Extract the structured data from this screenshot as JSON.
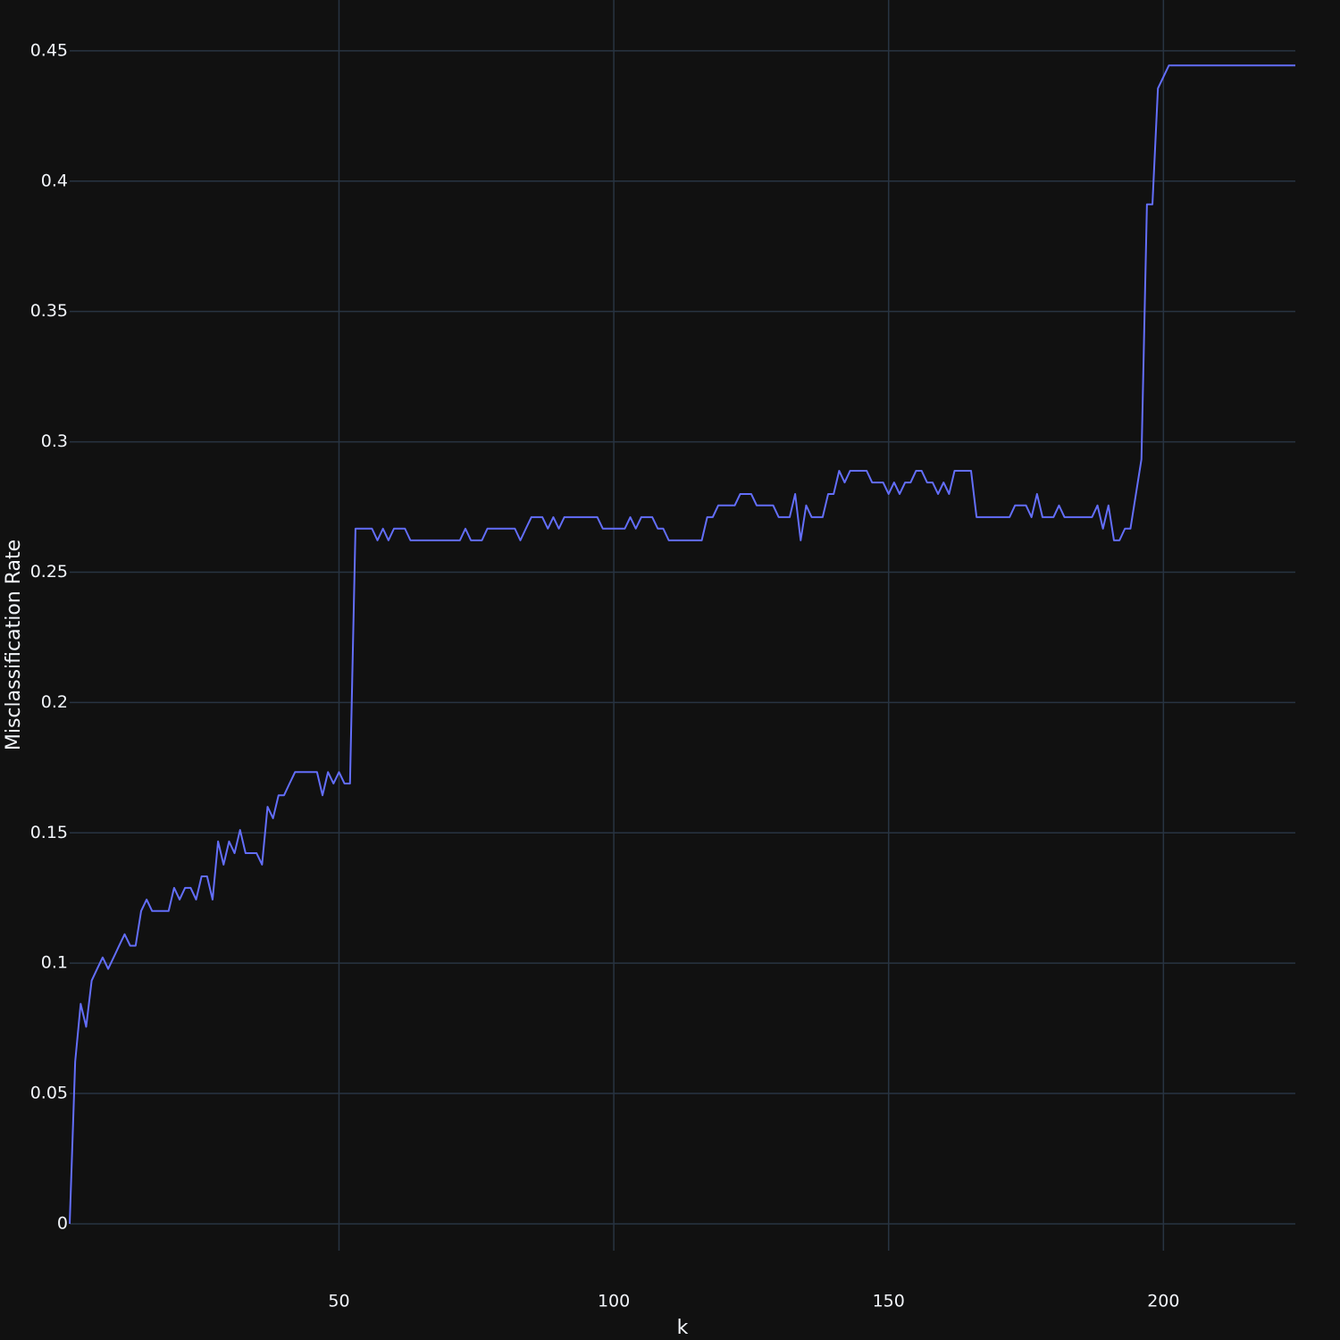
{
  "chart_data": {
    "type": "line",
    "x_label": "k",
    "y_label": "Misclassification Rate",
    "x": [
      1,
      2,
      3,
      4,
      5,
      6,
      7,
      8,
      9,
      10,
      11,
      12,
      13,
      14,
      15,
      16,
      17,
      18,
      19,
      20,
      21,
      22,
      23,
      24,
      25,
      26,
      27,
      28,
      29,
      30,
      31,
      32,
      33,
      34,
      35,
      36,
      37,
      38,
      39,
      40,
      41,
      42,
      43,
      44,
      45,
      46,
      47,
      48,
      49,
      50,
      51,
      52,
      53,
      54,
      55,
      56,
      57,
      58,
      59,
      60,
      61,
      62,
      63,
      64,
      65,
      66,
      67,
      68,
      69,
      70,
      71,
      72,
      73,
      74,
      75,
      76,
      77,
      78,
      79,
      80,
      81,
      82,
      83,
      84,
      85,
      86,
      87,
      88,
      89,
      90,
      91,
      92,
      93,
      94,
      95,
      96,
      97,
      98,
      99,
      100,
      101,
      102,
      103,
      104,
      105,
      106,
      107,
      108,
      109,
      110,
      111,
      112,
      113,
      114,
      115,
      116,
      117,
      118,
      119,
      120,
      121,
      122,
      123,
      124,
      125,
      126,
      127,
      128,
      129,
      130,
      131,
      132,
      133,
      134,
      135,
      136,
      137,
      138,
      139,
      140,
      141,
      142,
      143,
      144,
      145,
      146,
      147,
      148,
      149,
      150,
      151,
      152,
      153,
      154,
      155,
      156,
      157,
      158,
      159,
      160,
      161,
      162,
      163,
      164,
      165,
      166,
      167,
      168,
      169,
      170,
      171,
      172,
      173,
      174,
      175,
      176,
      177,
      178,
      179,
      180,
      181,
      182,
      183,
      184,
      185,
      186,
      187,
      188,
      189,
      190,
      191,
      192,
      193,
      194,
      195,
      196,
      197,
      198,
      199,
      200,
      201,
      202,
      203,
      204,
      205,
      206,
      207,
      208,
      209,
      210,
      211,
      212,
      213,
      214,
      215,
      216,
      217,
      218,
      219,
      220,
      221,
      222,
      223,
      224
    ],
    "series": [
      {
        "color": "#636efa",
        "values": [
          0,
          0.0622,
          0.0844,
          0.0756,
          0.0933,
          0.0978,
          0.1022,
          0.0978,
          0.1022,
          0.1067,
          0.1111,
          0.1067,
          0.1067,
          0.12,
          0.1244,
          0.12,
          0.12,
          0.12,
          0.12,
          0.1289,
          0.1244,
          0.1289,
          0.1289,
          0.1244,
          0.1333,
          0.1333,
          0.1244,
          0.1467,
          0.1378,
          0.1467,
          0.1422,
          0.1511,
          0.1422,
          0.1422,
          0.1422,
          0.1378,
          0.16,
          0.1556,
          0.1644,
          0.1644,
          0.1689,
          0.1733,
          0.1733,
          0.1733,
          0.1733,
          0.1733,
          0.1644,
          0.1733,
          0.1689,
          0.1733,
          0.1689,
          0.1689,
          0.2667,
          0.2667,
          0.2667,
          0.2667,
          0.2622,
          0.2667,
          0.2622,
          0.2667,
          0.2667,
          0.2667,
          0.2622,
          0.2622,
          0.2622,
          0.2622,
          0.2622,
          0.2622,
          0.2622,
          0.2622,
          0.2622,
          0.2622,
          0.2667,
          0.2622,
          0.2622,
          0.2622,
          0.2667,
          0.2667,
          0.2667,
          0.2667,
          0.2667,
          0.2667,
          0.2622,
          0.2667,
          0.2711,
          0.2711,
          0.2711,
          0.2667,
          0.2711,
          0.2667,
          0.2711,
          0.2711,
          0.2711,
          0.2711,
          0.2711,
          0.2711,
          0.2711,
          0.2667,
          0.2667,
          0.2667,
          0.2667,
          0.2667,
          0.2711,
          0.2667,
          0.2711,
          0.2711,
          0.2711,
          0.2667,
          0.2667,
          0.2622,
          0.2622,
          0.2622,
          0.2622,
          0.2622,
          0.2622,
          0.2622,
          0.2711,
          0.2711,
          0.2756,
          0.2756,
          0.2756,
          0.2756,
          0.28,
          0.28,
          0.28,
          0.2756,
          0.2756,
          0.2756,
          0.2756,
          0.2711,
          0.2711,
          0.2711,
          0.28,
          0.2622,
          0.2756,
          0.2711,
          0.2711,
          0.2711,
          0.28,
          0.28,
          0.2889,
          0.2844,
          0.2889,
          0.2889,
          0.2889,
          0.2889,
          0.2844,
          0.2844,
          0.2844,
          0.28,
          0.2844,
          0.28,
          0.2844,
          0.2844,
          0.2889,
          0.2889,
          0.2844,
          0.2844,
          0.28,
          0.2844,
          0.28,
          0.2889,
          0.2889,
          0.2889,
          0.2889,
          0.2711,
          0.2711,
          0.2711,
          0.2711,
          0.2711,
          0.2711,
          0.2711,
          0.2756,
          0.2756,
          0.2756,
          0.2711,
          0.28,
          0.2711,
          0.2711,
          0.2711,
          0.2756,
          0.2711,
          0.2711,
          0.2711,
          0.2711,
          0.2711,
          0.2711,
          0.2756,
          0.2667,
          0.2756,
          0.2622,
          0.2622,
          0.2667,
          0.2667,
          0.28,
          0.2933,
          0.3911,
          0.3911,
          0.4356,
          0.44,
          0.4444,
          0.4444,
          0.4444,
          0.4444,
          0.4444,
          0.4444,
          0.4444,
          0.4444,
          0.4444,
          0.4444,
          0.4444,
          0.4444,
          0.4444,
          0.4444,
          0.4444,
          0.4444,
          0.4444,
          0.4444,
          0.4444,
          0.4444,
          0.4444,
          0.4444,
          0.4444,
          0.4444
        ]
      }
    ],
    "xlim": [
      1,
      224
    ],
    "xticks": [
      50,
      100,
      150,
      200
    ],
    "ylim": [
      -0.0103,
      0.4695
    ],
    "yticks": [
      0,
      0.05,
      0.1,
      0.15,
      0.2,
      0.25,
      0.3,
      0.35,
      0.4,
      0.45
    ],
    "grid": true,
    "background": "#111111",
    "grid_color": "#283442"
  }
}
